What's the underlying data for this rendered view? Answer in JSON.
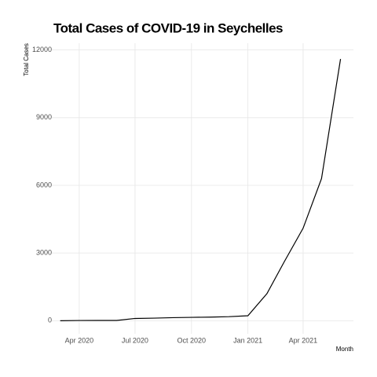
{
  "chart_data": {
    "type": "line",
    "title": "Total Cases of COVID-19 in Seychelles",
    "x_label": "Month",
    "y_label": "Total Cases",
    "x": [
      "2020-03",
      "2020-04",
      "2020-05",
      "2020-06",
      "2020-07",
      "2020-08",
      "2020-09",
      "2020-10",
      "2020-11",
      "2020-12",
      "2021-01",
      "2021-02",
      "2021-03",
      "2021-04",
      "2021-05",
      "2021-06"
    ],
    "series": [
      {
        "name": "Total Cases",
        "color": "#000000",
        "values": [
          0,
          10,
          11,
          11,
          100,
          114,
          136,
          149,
          160,
          180,
          220,
          1200,
          2600,
          4100,
          6300,
          11600
        ]
      }
    ],
    "xlim": [
      "2020-02",
      "2021-07"
    ],
    "xticks": [
      {
        "value": "2020-04",
        "label": "Apr 2020"
      },
      {
        "value": "2020-07",
        "label": "Jul 2020"
      },
      {
        "value": "2020-10",
        "label": "Oct 2020"
      },
      {
        "value": "2021-01",
        "label": "Jan 2021"
      },
      {
        "value": "2021-04",
        "label": "Apr 2021"
      }
    ],
    "ylim": [
      -580,
      12300
    ],
    "yticks": [
      0,
      3000,
      6000,
      9000,
      12000
    ],
    "grid": true
  }
}
